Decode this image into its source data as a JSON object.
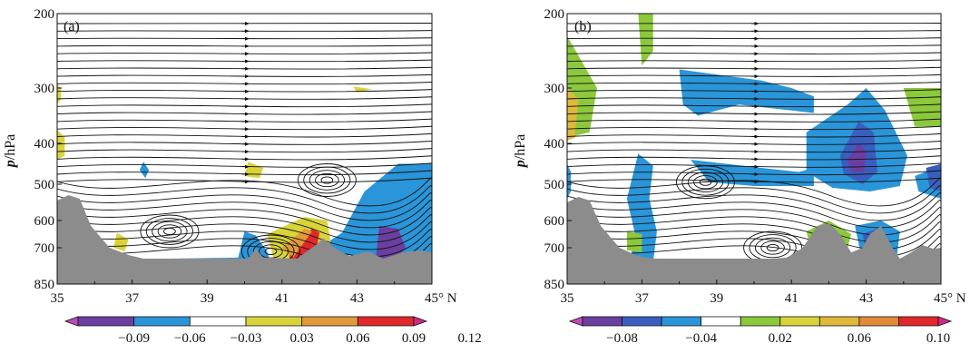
{
  "chart_data": [
    {
      "type": "heatmap",
      "panel_label": "(a)",
      "ylabel": "p/hPa",
      "x_ticks": [
        "35",
        "37",
        "39",
        "41",
        "43",
        "45° N"
      ],
      "y_ticks": [
        "200",
        "300",
        "400",
        "500",
        "600",
        "700",
        "850"
      ],
      "xlim": [
        35,
        45
      ],
      "ylim": [
        850,
        200
      ],
      "colorbar": {
        "labels": [
          "−0.09",
          "−0.06",
          "−0.03",
          "0.03",
          "0.06",
          "0.09",
          "0.12"
        ],
        "colors": [
          "#c04ab8",
          "#6a3fa0",
          "#2a95d8",
          "#ffffff",
          "#d8d43a",
          "#e09a3a",
          "#e0282a",
          "#d02a8a"
        ]
      },
      "terrain_color": "#8c8c8c",
      "shading": [
        {
          "color": "#2a95d8",
          "points": [
            [
              40.3,
              655
            ],
            [
              40.6,
              715
            ],
            [
              40.7,
              760
            ],
            [
              39.8,
              760
            ],
            [
              40.0,
              640
            ]
          ]
        },
        {
          "color": "#2a95d8",
          "points": [
            [
              37.5,
              760
            ],
            [
              40.2,
              760
            ],
            [
              40.2,
              740
            ],
            [
              38.0,
              745
            ]
          ]
        },
        {
          "color": "#2a95d8",
          "points": [
            [
              41.8,
              720
            ],
            [
              42.6,
              645
            ],
            [
              43.2,
              520
            ],
            [
              44.1,
              450
            ],
            [
              45,
              450
            ],
            [
              45,
              740
            ],
            [
              43.9,
              745
            ]
          ]
        },
        {
          "color": "#2a95d8",
          "points": [
            [
              37.3,
              445
            ],
            [
              37.45,
              465
            ],
            [
              37.35,
              485
            ],
            [
              37.2,
              465
            ]
          ]
        },
        {
          "color": "#6a3fa0",
          "points": [
            [
              43.6,
              620
            ],
            [
              44.1,
              630
            ],
            [
              44.3,
              700
            ],
            [
              43.9,
              770
            ],
            [
              43.5,
              740
            ]
          ]
        },
        {
          "color": "#d8d43a",
          "points": [
            [
              40.6,
              650
            ],
            [
              41.6,
              590
            ],
            [
              42.2,
              600
            ],
            [
              42.3,
              680
            ],
            [
              41.6,
              760
            ],
            [
              40.8,
              760
            ]
          ]
        },
        {
          "color": "#e0282a",
          "points": [
            [
              41.2,
              710
            ],
            [
              41.8,
              630
            ],
            [
              42.0,
              645
            ],
            [
              41.9,
              720
            ],
            [
              41.5,
              760
            ],
            [
              41.2,
              745
            ]
          ]
        },
        {
          "color": "#e09a3a",
          "points": [
            [
              41.0,
              700
            ],
            [
              41.6,
              630
            ],
            [
              41.8,
              640
            ],
            [
              41.3,
              740
            ]
          ]
        },
        {
          "color": "#d8d43a",
          "points": [
            [
              36.6,
              645
            ],
            [
              36.9,
              670
            ],
            [
              36.8,
              715
            ],
            [
              36.5,
              700
            ]
          ]
        },
        {
          "color": "#d8d43a",
          "points": [
            [
              35,
              375
            ],
            [
              35.2,
              390
            ],
            [
              35.2,
              430
            ],
            [
              35,
              440
            ]
          ]
        },
        {
          "color": "#d8d43a",
          "points": [
            [
              35,
              295
            ],
            [
              35.1,
              300
            ],
            [
              35.1,
              320
            ],
            [
              35,
              330
            ]
          ]
        },
        {
          "color": "#d8d43a",
          "points": [
            [
              40.1,
              445
            ],
            [
              40.5,
              460
            ],
            [
              40.4,
              485
            ],
            [
              40.0,
              480
            ]
          ]
        },
        {
          "color": "#d8d43a",
          "points": [
            [
              42.9,
              298
            ],
            [
              43.4,
              302
            ],
            [
              43.0,
              308
            ]
          ]
        }
      ]
    },
    {
      "type": "heatmap",
      "panel_label": "(b)",
      "ylabel": "p/hPa",
      "x_ticks": [
        "35",
        "37",
        "39",
        "41",
        "43",
        "45° N"
      ],
      "y_ticks": [
        "200",
        "300",
        "400",
        "500",
        "600",
        "700",
        "850"
      ],
      "xlim": [
        35,
        45
      ],
      "ylim": [
        850,
        200
      ],
      "colorbar": {
        "labels": [
          "−0.08",
          "−0.04",
          "0.02",
          "0.06",
          "0.10"
        ],
        "colors": [
          "#c04ab8",
          "#6a3fa0",
          "#3a5ec0",
          "#2a95d8",
          "#ffffff",
          "#8cc83c",
          "#d8d43a",
          "#e0b83a",
          "#e08a3a",
          "#e0282a",
          "#d02a8a"
        ]
      },
      "terrain_color": "#8c8c8c",
      "shading": [
        {
          "color": "#2a95d8",
          "points": [
            [
              38.0,
              275
            ],
            [
              40.2,
              290
            ],
            [
              41.0,
              300
            ],
            [
              41.6,
              315
            ],
            [
              41.6,
              345
            ],
            [
              39.6,
              330
            ],
            [
              38.5,
              350
            ],
            [
              38.1,
              330
            ]
          ]
        },
        {
          "color": "#2a95d8",
          "points": [
            [
              38.3,
              440
            ],
            [
              40.2,
              460
            ],
            [
              41.2,
              470
            ],
            [
              41.6,
              460
            ],
            [
              41.6,
              505
            ],
            [
              40.0,
              505
            ],
            [
              38.8,
              495
            ]
          ]
        },
        {
          "color": "#2a95d8",
          "points": [
            [
              41.4,
              380
            ],
            [
              42.5,
              330
            ],
            [
              43.0,
              300
            ],
            [
              43.5,
              340
            ],
            [
              44.1,
              430
            ],
            [
              43.9,
              505
            ],
            [
              43.1,
              520
            ],
            [
              42.1,
              510
            ],
            [
              41.4,
              470
            ]
          ]
        },
        {
          "color": "#2a95d8",
          "points": [
            [
              36.9,
              425
            ],
            [
              37.3,
              455
            ],
            [
              37.2,
              540
            ],
            [
              37.4,
              640
            ],
            [
              37.3,
              760
            ],
            [
              36.7,
              760
            ],
            [
              36.8,
              640
            ],
            [
              36.6,
              540
            ]
          ]
        },
        {
          "color": "#2a95d8",
          "points": [
            [
              44.3,
              480
            ],
            [
              45,
              455
            ],
            [
              45,
              540
            ],
            [
              44.4,
              520
            ]
          ]
        },
        {
          "color": "#2a95d8",
          "points": [
            [
              35,
              450
            ],
            [
              35.1,
              470
            ],
            [
              35.1,
              520
            ],
            [
              35,
              540
            ]
          ]
        },
        {
          "color": "#2a95d8",
          "points": [
            [
              42.7,
              620
            ],
            [
              43.4,
              600
            ],
            [
              43.9,
              640
            ],
            [
              43.8,
              760
            ],
            [
              42.9,
              760
            ]
          ]
        },
        {
          "color": "#3a5ec0",
          "points": [
            [
              42.3,
              430
            ],
            [
              42.8,
              360
            ],
            [
              43.2,
              380
            ],
            [
              43.3,
              470
            ],
            [
              42.9,
              500
            ],
            [
              42.4,
              475
            ]
          ]
        },
        {
          "color": "#3a5ec0",
          "points": [
            [
              44.6,
              460
            ],
            [
              45,
              450
            ],
            [
              45,
              520
            ],
            [
              44.7,
              510
            ]
          ]
        },
        {
          "color": "#3a5ec0",
          "points": [
            [
              42.9,
              650
            ],
            [
              43.3,
              630
            ],
            [
              43.4,
              700
            ],
            [
              43.0,
              720
            ]
          ]
        },
        {
          "color": "#6a3fa0",
          "points": [
            [
              42.5,
              440
            ],
            [
              42.8,
              400
            ],
            [
              43.0,
              420
            ],
            [
              42.95,
              470
            ],
            [
              42.6,
              470
            ]
          ]
        },
        {
          "color": "#6a3fa0",
          "points": [
            [
              43.0,
              670
            ],
            [
              43.2,
              660
            ],
            [
              43.2,
              700
            ],
            [
              43.0,
              700
            ]
          ]
        },
        {
          "color": "#8cc83c",
          "points": [
            [
              36.9,
              200
            ],
            [
              37.3,
              200
            ],
            [
              37.3,
              250
            ],
            [
              37.0,
              270
            ]
          ]
        },
        {
          "color": "#8cc83c",
          "points": [
            [
              35,
              230
            ],
            [
              35.8,
              300
            ],
            [
              35.6,
              380
            ],
            [
              35,
              390
            ]
          ]
        },
        {
          "color": "#8cc83c",
          "points": [
            [
              44.0,
              300
            ],
            [
              45,
              300
            ],
            [
              45,
              370
            ],
            [
              44.3,
              370
            ]
          ]
        },
        {
          "color": "#8cc83c",
          "points": [
            [
              41.4,
              640
            ],
            [
              42.0,
              600
            ],
            [
              42.6,
              650
            ],
            [
              42.4,
              760
            ],
            [
              41.6,
              760
            ]
          ]
        },
        {
          "color": "#8cc83c",
          "points": [
            [
              36.6,
              640
            ],
            [
              37.0,
              650
            ],
            [
              37.0,
              720
            ],
            [
              36.6,
              710
            ]
          ]
        },
        {
          "color": "#8cc83c",
          "points": [
            [
              44.2,
              730
            ],
            [
              44.4,
              720
            ],
            [
              44.3,
              770
            ],
            [
              44.1,
              765
            ]
          ]
        },
        {
          "color": "#d8d43a",
          "points": [
            [
              41.6,
              660
            ],
            [
              42.0,
              620
            ],
            [
              42.3,
              660
            ],
            [
              42.1,
              740
            ]
          ]
        },
        {
          "color": "#e0b83a",
          "points": [
            [
              35,
              300
            ],
            [
              35.3,
              320
            ],
            [
              35.2,
              390
            ],
            [
              35,
              395
            ]
          ]
        },
        {
          "color": "#e08a3a",
          "points": [
            [
              41.8,
              680
            ],
            [
              42.0,
              650
            ],
            [
              42.1,
              700
            ],
            [
              41.9,
              720
            ]
          ]
        }
      ]
    }
  ]
}
